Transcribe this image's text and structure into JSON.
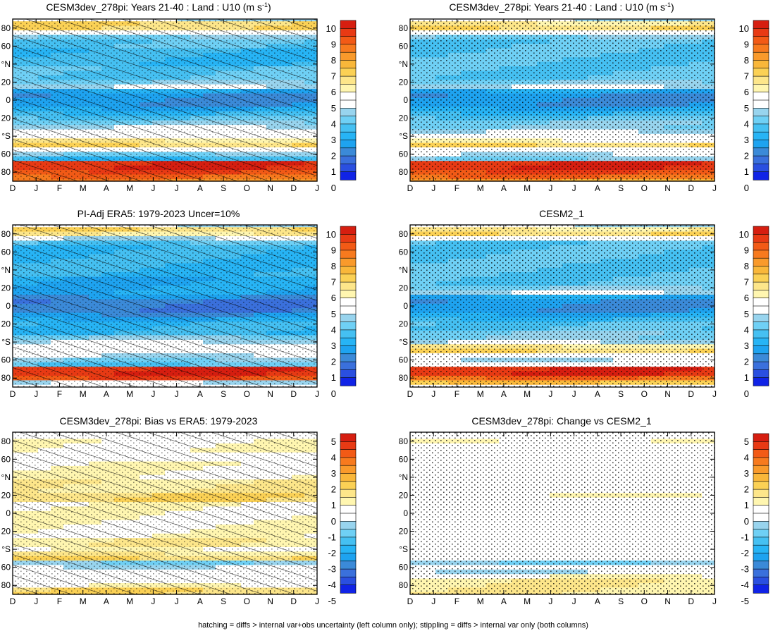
{
  "chart_data": [
    {
      "type": "heatmap",
      "title": "CESM3dev_278pi: Years 21-40 : Land : U10",
      "title_units_base": "(m s",
      "title_units_sup": "-1",
      "title_units_end": ")",
      "x_ticks": [
        "D",
        "J",
        "F",
        "M",
        "A",
        "M",
        "J",
        "J",
        "A",
        "S",
        "O",
        "N",
        "D",
        "J"
      ],
      "y_ticks": [
        "80",
        "60",
        "°N",
        "20",
        "0",
        "20",
        "°S",
        "60",
        "80"
      ],
      "colorbar": {
        "ticks": [
          "10",
          "9",
          "8",
          "7",
          "6",
          "5",
          "4",
          "3",
          "2",
          "1",
          "0"
        ],
        "min": 0,
        "max": 10,
        "step": 0.5
      },
      "zonal_profile": {
        "lat": [
          90,
          85,
          80,
          75,
          70,
          65,
          60,
          55,
          50,
          45,
          40,
          35,
          30,
          25,
          20,
          15,
          10,
          5,
          0,
          -5,
          -10,
          -15,
          -20,
          -25,
          -30,
          -35,
          -40,
          -45,
          -50,
          -55,
          -60,
          -65,
          -70,
          -75,
          -80,
          -85,
          -90
        ],
        "value": [
          4.5,
          6.5,
          6.5,
          5,
          4,
          3.5,
          3.5,
          3,
          3,
          3,
          3,
          3.5,
          3.5,
          3.5,
          4,
          4.5,
          2.5,
          2,
          2,
          2,
          2.5,
          3,
          3.5,
          4,
          4.5,
          5,
          5,
          6,
          6.5,
          5,
          4,
          3,
          9.5,
          9.5,
          9,
          8.5,
          8
        ]
      },
      "overlay": "hatching and stippling"
    },
    {
      "type": "heatmap",
      "title": "CESM3dev_278pi: Years 21-40 : Land : U10",
      "title_units_base": "(m s",
      "title_units_sup": "-1",
      "title_units_end": ")",
      "x_ticks": [
        "D",
        "J",
        "F",
        "M",
        "A",
        "M",
        "J",
        "J",
        "A",
        "S",
        "O",
        "N",
        "D",
        "J"
      ],
      "y_ticks": [
        "80",
        "60",
        "°N",
        "20",
        "0",
        "20",
        "°S",
        "60",
        "80"
      ],
      "colorbar": {
        "ticks": [
          "10",
          "9",
          "8",
          "7",
          "6",
          "5",
          "4",
          "3",
          "2",
          "1",
          "0"
        ],
        "min": 0,
        "max": 10,
        "step": 0.5
      },
      "zonal_profile": {
        "lat": [
          90,
          85,
          80,
          75,
          70,
          65,
          60,
          55,
          50,
          45,
          40,
          35,
          30,
          25,
          20,
          15,
          10,
          5,
          0,
          -5,
          -10,
          -15,
          -20,
          -25,
          -30,
          -35,
          -40,
          -45,
          -50,
          -55,
          -60,
          -65,
          -70,
          -75,
          -80,
          -85,
          -90
        ],
        "value": [
          4.5,
          6,
          6.5,
          5,
          4,
          3.5,
          3.5,
          3.5,
          3.5,
          3.5,
          3.5,
          3.5,
          3.5,
          3.5,
          4,
          4.5,
          2.5,
          2,
          2,
          2,
          2.5,
          3,
          3.5,
          4,
          4,
          4.5,
          5,
          5.5,
          6.5,
          5,
          4.5,
          4,
          9.5,
          9.5,
          9,
          8.5,
          7.5
        ]
      },
      "overlay": "stippling"
    },
    {
      "type": "heatmap",
      "title": "PI-Adj ERA5: 1979-2023 Uncer=10%",
      "x_ticks": [
        "D",
        "J",
        "F",
        "M",
        "A",
        "M",
        "J",
        "J",
        "A",
        "S",
        "O",
        "N",
        "D",
        "J"
      ],
      "y_ticks": [
        "80",
        "60",
        "°N",
        "20",
        "0",
        "20",
        "°S",
        "60",
        "80"
      ],
      "colorbar": {
        "ticks": [
          "10",
          "9",
          "8",
          "7",
          "6",
          "5",
          "4",
          "3",
          "2",
          "1",
          "0"
        ],
        "min": 0,
        "max": 10,
        "step": 0.5
      },
      "zonal_profile": {
        "lat": [
          90,
          85,
          80,
          75,
          70,
          65,
          60,
          55,
          50,
          45,
          40,
          35,
          30,
          25,
          20,
          15,
          10,
          5,
          0,
          -5,
          -10,
          -15,
          -20,
          -25,
          -30,
          -35,
          -40,
          -45,
          -50,
          -55,
          -60,
          -65,
          -70,
          -75,
          -80,
          -85,
          -90
        ],
        "value": [
          4.5,
          6.5,
          6,
          4.5,
          3.5,
          3,
          3,
          3,
          3,
          3,
          3,
          3,
          2.5,
          2.5,
          2.5,
          2.5,
          2,
          1.5,
          1.5,
          1.5,
          2,
          2.5,
          3,
          3,
          3,
          4,
          4.5,
          5,
          5,
          4.5,
          4,
          3.5,
          9.5,
          9.5,
          9,
          4.5,
          5
        ]
      },
      "overlay": "hatching and stippling"
    },
    {
      "type": "heatmap",
      "title": "CESM2_1",
      "x_ticks": [
        "D",
        "J",
        "F",
        "M",
        "A",
        "M",
        "J",
        "J",
        "A",
        "S",
        "O",
        "N",
        "D",
        "J"
      ],
      "y_ticks": [
        "80",
        "60",
        "°N",
        "20",
        "0",
        "20",
        "°S",
        "60",
        "80"
      ],
      "colorbar": {
        "ticks": [
          "10",
          "9",
          "8",
          "7",
          "6",
          "5",
          "4",
          "3",
          "2",
          "1",
          "0"
        ],
        "min": 0,
        "max": 10,
        "step": 0.5
      },
      "zonal_profile": {
        "lat": [
          90,
          85,
          80,
          75,
          70,
          65,
          60,
          55,
          50,
          45,
          40,
          35,
          30,
          25,
          20,
          15,
          10,
          5,
          0,
          -5,
          -10,
          -15,
          -20,
          -25,
          -30,
          -35,
          -40,
          -45,
          -50,
          -55,
          -60,
          -65,
          -70,
          -75,
          -80,
          -85,
          -90
        ],
        "value": [
          4.5,
          6,
          6.5,
          5,
          3.5,
          3.5,
          3.5,
          3.5,
          3.5,
          3.5,
          3.5,
          3.5,
          3.5,
          3.5,
          4,
          4.5,
          2.5,
          2,
          2,
          2,
          2.5,
          3,
          3.5,
          3.5,
          4,
          4,
          4.5,
          6,
          6.5,
          5,
          4.5,
          5,
          9.5,
          9.5,
          8.5,
          7,
          5
        ]
      },
      "overlay": "stippling"
    },
    {
      "type": "heatmap",
      "title": "CESM3dev_278pi: Bias vs ERA5: 1979-2023",
      "x_ticks": [
        "D",
        "J",
        "F",
        "M",
        "A",
        "M",
        "J",
        "J",
        "A",
        "S",
        "O",
        "N",
        "D",
        "J"
      ],
      "y_ticks": [
        "80",
        "60",
        "°N",
        "20",
        "0",
        "20",
        "°S",
        "60",
        "80"
      ],
      "colorbar": {
        "ticks": [
          "5",
          "4",
          "3",
          "2",
          "1",
          "0",
          "-1",
          "-2",
          "-3",
          "-4",
          "-5"
        ],
        "min": -5,
        "max": 5,
        "step": 0.5
      },
      "zonal_profile": {
        "lat": [
          90,
          85,
          80,
          75,
          70,
          65,
          60,
          55,
          50,
          45,
          40,
          35,
          30,
          25,
          20,
          15,
          10,
          5,
          0,
          -5,
          -10,
          -15,
          -20,
          -25,
          -30,
          -35,
          -40,
          -45,
          -50,
          -55,
          -60,
          -65,
          -70,
          -75,
          -80,
          -85,
          -90
        ],
        "value": [
          0,
          0,
          0.5,
          0.5,
          0.5,
          0,
          0,
          0.5,
          0.5,
          0.5,
          0.5,
          1,
          1,
          1,
          1.5,
          1.5,
          0.5,
          0.5,
          0.5,
          0.5,
          0.5,
          0.5,
          0.5,
          0.5,
          1,
          1,
          0.5,
          1,
          1.5,
          -1,
          -0.5,
          0,
          0,
          0,
          0.5,
          1.5,
          1.5
        ]
      },
      "overlay": "hatching and stippling"
    },
    {
      "type": "heatmap",
      "title": "CESM3dev_278pi: Change vs CESM2_1",
      "x_ticks": [
        "D",
        "J",
        "F",
        "M",
        "A",
        "M",
        "J",
        "J",
        "A",
        "S",
        "O",
        "N",
        "D",
        "J"
      ],
      "y_ticks": [
        "80",
        "60",
        "°N",
        "20",
        "0",
        "20",
        "°S",
        "60",
        "80"
      ],
      "colorbar": {
        "ticks": [
          "5",
          "4",
          "3",
          "2",
          "1",
          "0",
          "-1",
          "-2",
          "-3",
          "-4",
          "-5"
        ],
        "min": -5,
        "max": 5,
        "step": 0.5
      },
      "zonal_profile": {
        "lat": [
          90,
          85,
          80,
          75,
          70,
          65,
          60,
          55,
          50,
          45,
          40,
          35,
          30,
          25,
          20,
          15,
          10,
          5,
          0,
          -5,
          -10,
          -15,
          -20,
          -25,
          -30,
          -35,
          -40,
          -45,
          -50,
          -55,
          -60,
          -65,
          -70,
          -75,
          -80,
          -85,
          -90
        ],
        "value": [
          0,
          0,
          0.5,
          0,
          0,
          0,
          0,
          0,
          0,
          0,
          0,
          0,
          0,
          0,
          0.5,
          0,
          0,
          0,
          0,
          0,
          0,
          0,
          0,
          0,
          0,
          0,
          0,
          0,
          0,
          -1,
          0,
          -0.5,
          0.5,
          1,
          1,
          1,
          1
        ]
      },
      "overlay": "stippling"
    }
  ],
  "footer": "hatching = diffs > internal var+obs uncertainty (left column only); stippling = diffs > internal var only (both columns)"
}
